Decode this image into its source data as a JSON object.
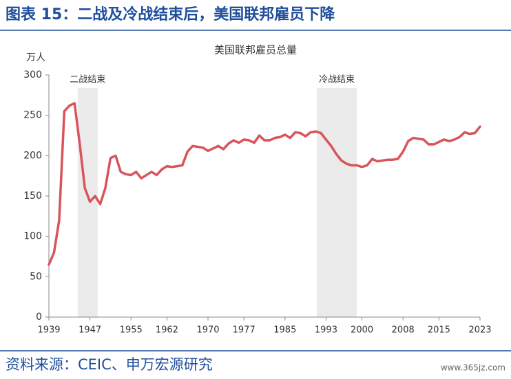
{
  "header": {
    "title": "图表 15：二战及冷战结束后，美国联邦雇员下降"
  },
  "chart_data": {
    "type": "line",
    "title": "美国联邦雇员总量",
    "y_label": "万人",
    "x": [
      1939,
      1940,
      1941,
      1942,
      1943,
      1944,
      1945,
      1946,
      1947,
      1948,
      1949,
      1950,
      1951,
      1952,
      1953,
      1954,
      1955,
      1956,
      1957,
      1958,
      1959,
      1960,
      1961,
      1962,
      1963,
      1964,
      1965,
      1966,
      1967,
      1968,
      1969,
      1970,
      1971,
      1972,
      1973,
      1974,
      1975,
      1976,
      1977,
      1978,
      1979,
      1980,
      1981,
      1982,
      1983,
      1984,
      1985,
      1986,
      1987,
      1988,
      1989,
      1990,
      1991,
      1992,
      1993,
      1994,
      1995,
      1996,
      1997,
      1998,
      1999,
      2000,
      2001,
      2002,
      2003,
      2004,
      2005,
      2006,
      2007,
      2008,
      2009,
      2010,
      2011,
      2012,
      2013,
      2014,
      2015,
      2016,
      2017,
      2018,
      2019,
      2020,
      2021,
      2022,
      2023
    ],
    "series": [
      {
        "color": "#d9545a",
        "values": [
          65,
          80,
          120,
          255,
          262,
          265,
          215,
          160,
          143,
          150,
          140,
          160,
          197,
          200,
          180,
          177,
          176,
          180,
          172,
          176,
          180,
          176,
          183,
          187,
          186,
          187,
          188,
          205,
          212,
          211,
          210,
          206,
          209,
          212,
          208,
          215,
          219,
          216,
          220,
          219,
          216,
          225,
          219,
          219,
          222,
          223,
          226,
          222,
          229,
          228,
          224,
          229,
          230,
          228,
          220,
          212,
          202,
          194,
          190,
          188,
          188,
          186,
          188,
          196,
          193,
          194,
          195,
          195,
          196,
          205,
          218,
          222,
          221,
          220,
          214,
          214,
          217,
          220,
          218,
          220,
          223,
          229,
          227,
          228,
          236
        ]
      }
    ],
    "shaded_regions": [
      {
        "label": "二战结束",
        "start": 1944.6,
        "end": 1948.5
      },
      {
        "label": "冷战结束",
        "start": 1991.2,
        "end": 1999
      }
    ],
    "shade_color": "#ebebeb",
    "xlim": [
      1939,
      2023
    ],
    "xticks": [
      1939,
      1947,
      1955,
      1962,
      1970,
      1977,
      1985,
      1993,
      2000,
      2008,
      2015,
      2023
    ],
    "ylim": [
      0,
      300
    ],
    "yticks": [
      0,
      50,
      100,
      150,
      200,
      250,
      300
    ],
    "grid": false
  },
  "footer": {
    "source": "资料来源：CEIC、申万宏源研究",
    "watermark": "www.365jz.com"
  }
}
